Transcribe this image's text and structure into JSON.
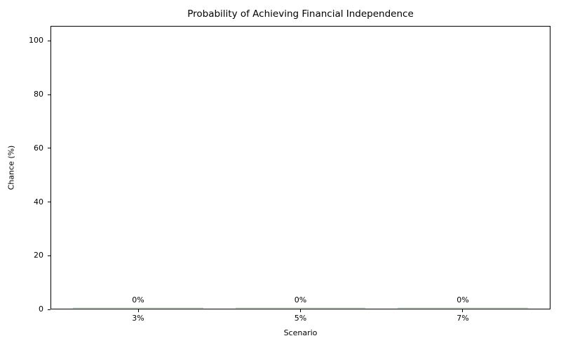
{
  "chart_data": {
    "type": "bar",
    "title": "Probability of Achieving Financial Independence",
    "xlabel": "Scenario",
    "ylabel": "Chance (%)",
    "categories": [
      "3%",
      "5%",
      "7%"
    ],
    "values": [
      0,
      0,
      0
    ],
    "bar_labels": [
      "0%",
      "0%",
      "0%"
    ],
    "yticks": [
      0,
      20,
      40,
      60,
      80,
      100
    ],
    "ylim": [
      0,
      105.6
    ],
    "bar_width_fraction": 0.8,
    "grid": false,
    "legend_position": "none",
    "bar_color": "#d2e4d2",
    "axis_color": "#000000",
    "text_color": "#000000",
    "background_color": "#ffffff"
  }
}
